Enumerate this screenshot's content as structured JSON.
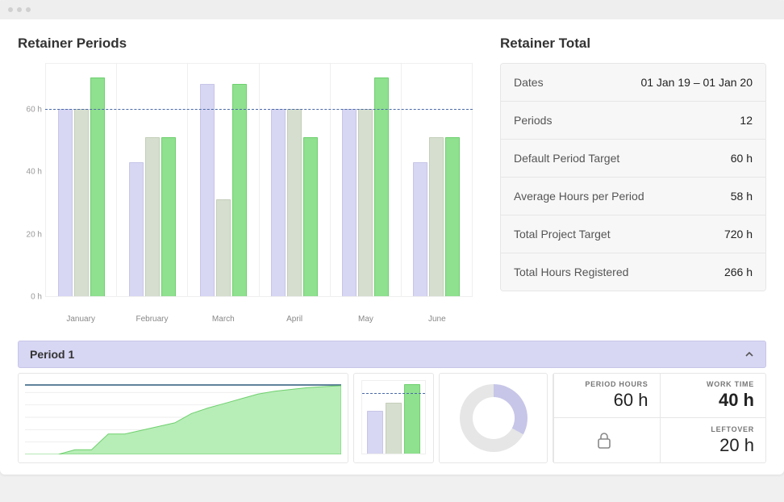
{
  "chart": {
    "title": "Retainer Periods",
    "type": "bar",
    "ymax": 75,
    "target": 60,
    "target_line_color": "#4a6aa8",
    "yticks": [
      0,
      20,
      40,
      60
    ],
    "ytick_suffix": " h",
    "bar_colors": [
      "#d7d6f3",
      "#d6dfcf",
      "#8fe08f"
    ],
    "bar_borders": [
      "#c7c6e8",
      "#c3cdb9",
      "#6fd06f"
    ],
    "months": [
      {
        "label": "January",
        "values": [
          60,
          60,
          70
        ]
      },
      {
        "label": "February",
        "values": [
          43,
          51,
          51
        ]
      },
      {
        "label": "March",
        "values": [
          68,
          31,
          68
        ]
      },
      {
        "label": "April",
        "values": [
          60,
          60,
          51
        ]
      },
      {
        "label": "May",
        "values": [
          60,
          60,
          70
        ]
      },
      {
        "label": "June",
        "values": [
          43,
          51,
          51
        ]
      }
    ]
  },
  "totals": {
    "title": "Retainer Total",
    "rows": [
      {
        "label": "Dates",
        "value": "01 Jan 19  –  01 Jan 20"
      },
      {
        "label": "Periods",
        "value": "12"
      },
      {
        "label": "Default Period Target",
        "value": "60 h"
      },
      {
        "label": "Average Hours per Period",
        "value": "58 h"
      },
      {
        "label": "Total Project Target",
        "value": "720 h"
      },
      {
        "label": "Total Hours Registered",
        "value": "266 h"
      }
    ]
  },
  "period": {
    "title": "Period 1",
    "expanded": true,
    "area": {
      "type": "area",
      "fill": "#b7edb7",
      "stroke": "#6fd06f",
      "top_line": "#2a5a7a",
      "grid": "#eeeeee",
      "points": [
        0,
        0,
        0,
        5,
        5,
        22,
        22,
        26,
        30,
        34,
        44,
        50,
        55,
        60,
        65,
        68,
        70,
        72,
        73,
        74
      ],
      "ymax": 80
    },
    "mini": {
      "type": "bar",
      "target": 60,
      "ymax": 75,
      "values": [
        43,
        51,
        70
      ],
      "colors": [
        "#d7d6f3",
        "#d6dfcf",
        "#8fe08f"
      ],
      "borders": [
        "#c7c6e8",
        "#c3cdb9",
        "#6fd06f"
      ]
    },
    "donut": {
      "type": "pie",
      "percent": 33,
      "fg": "#c7c6e8",
      "bg": "#e6e6e6"
    },
    "stats": {
      "period_hours_label": "PERIOD HOURS",
      "period_hours_value": "60 h",
      "work_time_label": "WORK TIME",
      "work_time_value": "40 h",
      "leftover_label": "LEFTOVER",
      "leftover_value": "20 h"
    }
  }
}
